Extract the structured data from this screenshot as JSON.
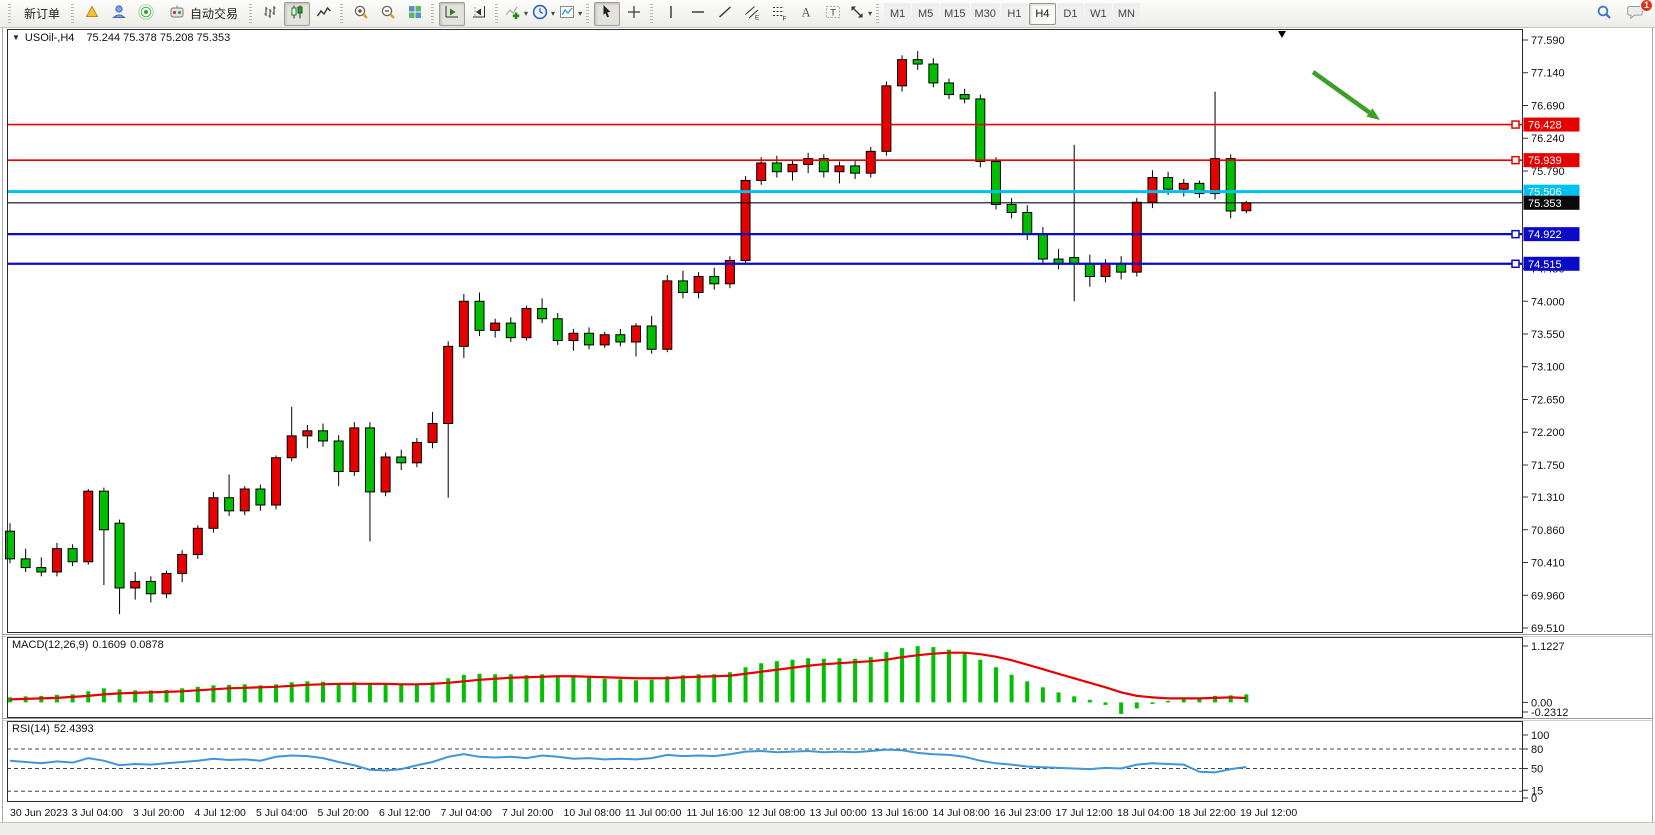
{
  "toolbar": {
    "new_order_label": "新订单",
    "auto_trading_label": "自动交易",
    "groups": [
      [
        {
          "type": "text",
          "name": "new-order-button",
          "label_key": "new_order_label"
        }
      ],
      [
        {
          "type": "icon",
          "name": "gold-badge-icon"
        },
        {
          "type": "icon",
          "name": "accounts-icon"
        },
        {
          "type": "icon",
          "name": "signal-icon"
        },
        {
          "type": "icon-text",
          "name": "autotrading-button",
          "icon": "autotrading-icon",
          "label_key": "auto_trading_label"
        }
      ],
      [
        {
          "type": "icon",
          "name": "bar-chart-icon"
        },
        {
          "type": "icon",
          "name": "candlestick-chart-icon",
          "pressed": true
        },
        {
          "type": "icon",
          "name": "line-chart-icon"
        }
      ],
      [
        {
          "type": "icon",
          "name": "zoom-in-icon"
        },
        {
          "type": "icon",
          "name": "zoom-out-icon"
        },
        {
          "type": "icon",
          "name": "tile-windows-icon"
        }
      ],
      [
        {
          "type": "icon",
          "name": "auto-scroll-icon",
          "pressed": true
        },
        {
          "type": "icon",
          "name": "chart-shift-icon"
        }
      ],
      [
        {
          "type": "icon",
          "name": "indicators-icon",
          "dropdown": true
        },
        {
          "type": "icon",
          "name": "periods-icon",
          "dropdown": true
        },
        {
          "type": "icon",
          "name": "templates-icon",
          "dropdown": true
        }
      ],
      [
        {
          "type": "icon",
          "name": "cursor-icon",
          "pressed": true
        },
        {
          "type": "icon",
          "name": "crosshair-icon"
        }
      ],
      [
        {
          "type": "icon",
          "name": "vertical-line-icon"
        },
        {
          "type": "icon",
          "name": "horizontal-line-icon"
        },
        {
          "type": "icon",
          "name": "trendline-icon"
        },
        {
          "type": "icon",
          "name": "channel-icon"
        },
        {
          "type": "icon",
          "name": "fibonacci-icon"
        },
        {
          "type": "icon",
          "name": "text-icon"
        },
        {
          "type": "icon",
          "name": "text-label-icon"
        },
        {
          "type": "icon",
          "name": "arrows-icon",
          "dropdown": true
        }
      ]
    ],
    "timeframes": [
      "M1",
      "M5",
      "M15",
      "M30",
      "H1",
      "H4",
      "D1",
      "W1",
      "MN"
    ],
    "active_timeframe": "H4",
    "right_icons": [
      "search-icon",
      "notifications-icon"
    ],
    "notification_count": "1"
  },
  "chart": {
    "title": {
      "marker": "▼",
      "symbol_period": "USOil-,H4",
      "ohlc": "75.244 75.378 75.208 75.353"
    }
  },
  "chart_data": {
    "type": "candlestick",
    "symbol": "USOil",
    "period": "H4",
    "last_ohlc": {
      "open": 75.244,
      "high": 75.378,
      "low": 75.208,
      "close": 75.353
    },
    "ylim": [
      69.51,
      77.59
    ],
    "y_ticks": [
      "77.590",
      "77.140",
      "76.690",
      "76.240",
      "75.790",
      "74.450",
      "74.000",
      "73.550",
      "73.100",
      "72.650",
      "72.200",
      "71.750",
      "71.310",
      "70.860",
      "70.410",
      "69.960",
      "69.510"
    ],
    "x_labels": [
      "30 Jun 2023",
      "3 Jul 04:00",
      "3 Jul 20:00",
      "4 Jul 12:00",
      "5 Jul 04:00",
      "5 Jul 20:00",
      "6 Jul 12:00",
      "7 Jul 04:00",
      "7 Jul 20:00",
      "10 Jul 08:00",
      "11 Jul 00:00",
      "11 Jul 16:00",
      "12 Jul 08:00",
      "13 Jul 00:00",
      "13 Jul 16:00",
      "14 Jul 08:00",
      "16 Jul 23:00",
      "17 Jul 12:00",
      "18 Jul 04:00",
      "18 Jul 22:00",
      "19 Jul 12:00"
    ],
    "price_lines": [
      {
        "value": 76.428,
        "label": "76.428",
        "color": "#e60000",
        "width": 1.6,
        "marker": true
      },
      {
        "value": 75.939,
        "label": "75.939",
        "color": "#e60000",
        "width": 1.6,
        "marker": true
      },
      {
        "value": 75.506,
        "label": "75.506",
        "color": "#00c0ef",
        "width": 3,
        "marker": false
      },
      {
        "value": 75.353,
        "label": "75.353",
        "color": "#0a0a0a",
        "width": 1.2,
        "marker": false,
        "role": "current-price"
      },
      {
        "value": 74.922,
        "label": "74.922",
        "color": "#0a0ac8",
        "width": 2.2,
        "marker": true
      },
      {
        "value": 74.515,
        "label": "74.515",
        "color": "#0a0ac8",
        "width": 2.2,
        "marker": true
      }
    ],
    "candles": [
      [
        70.84,
        70.95,
        70.4,
        70.46
      ],
      [
        70.46,
        70.6,
        70.28,
        70.34
      ],
      [
        70.34,
        70.48,
        70.22,
        70.28
      ],
      [
        70.28,
        70.68,
        70.22,
        70.6
      ],
      [
        70.6,
        70.66,
        70.36,
        70.42
      ],
      [
        70.42,
        71.42,
        70.38,
        71.39
      ],
      [
        71.39,
        71.44,
        70.1,
        70.86
      ],
      [
        70.95,
        71.0,
        69.7,
        70.06
      ],
      [
        70.06,
        70.28,
        69.9,
        70.15
      ],
      [
        70.15,
        70.22,
        69.86,
        69.98
      ],
      [
        69.98,
        70.3,
        69.92,
        70.26
      ],
      [
        70.26,
        70.58,
        70.14,
        70.52
      ],
      [
        70.52,
        70.92,
        70.46,
        70.88
      ],
      [
        70.88,
        71.38,
        70.82,
        71.3
      ],
      [
        71.3,
        71.62,
        71.05,
        71.12
      ],
      [
        71.12,
        71.46,
        71.06,
        71.42
      ],
      [
        71.42,
        71.48,
        71.12,
        71.2
      ],
      [
        71.2,
        71.88,
        71.14,
        71.85
      ],
      [
        71.85,
        72.55,
        71.8,
        72.15
      ],
      [
        72.15,
        72.3,
        71.98,
        72.22
      ],
      [
        72.22,
        72.32,
        72.0,
        72.08
      ],
      [
        72.08,
        72.16,
        71.46,
        71.66
      ],
      [
        71.66,
        72.34,
        71.6,
        72.26
      ],
      [
        72.26,
        72.34,
        70.7,
        71.38
      ],
      [
        71.38,
        71.92,
        71.32,
        71.86
      ],
      [
        71.86,
        71.96,
        71.68,
        71.78
      ],
      [
        71.78,
        72.12,
        71.72,
        72.06
      ],
      [
        72.06,
        72.48,
        71.98,
        72.32
      ],
      [
        72.32,
        73.45,
        71.3,
        73.38
      ],
      [
        73.38,
        74.1,
        73.22,
        74.0
      ],
      [
        74.0,
        74.12,
        73.52,
        73.6
      ],
      [
        73.6,
        73.76,
        73.5,
        73.7
      ],
      [
        73.7,
        73.78,
        73.44,
        73.5
      ],
      [
        73.5,
        73.94,
        73.46,
        73.9
      ],
      [
        73.9,
        74.04,
        73.7,
        73.76
      ],
      [
        73.76,
        73.84,
        73.4,
        73.46
      ],
      [
        73.46,
        73.62,
        73.32,
        73.56
      ],
      [
        73.56,
        73.64,
        73.34,
        73.4
      ],
      [
        73.4,
        73.58,
        73.36,
        73.54
      ],
      [
        73.54,
        73.62,
        73.38,
        73.44
      ],
      [
        73.44,
        73.7,
        73.24,
        73.66
      ],
      [
        73.66,
        73.8,
        73.28,
        73.34
      ],
      [
        73.34,
        74.36,
        73.3,
        74.28
      ],
      [
        74.28,
        74.42,
        74.04,
        74.12
      ],
      [
        74.12,
        74.4,
        74.04,
        74.34
      ],
      [
        74.34,
        74.46,
        74.16,
        74.24
      ],
      [
        74.24,
        74.62,
        74.18,
        74.56
      ],
      [
        74.56,
        75.72,
        74.5,
        75.66
      ],
      [
        75.66,
        75.98,
        75.6,
        75.9
      ],
      [
        75.9,
        76.0,
        75.7,
        75.78
      ],
      [
        75.78,
        75.94,
        75.66,
        75.88
      ],
      [
        75.88,
        76.04,
        75.76,
        75.96
      ],
      [
        75.96,
        76.02,
        75.7,
        75.78
      ],
      [
        75.78,
        75.92,
        75.62,
        75.86
      ],
      [
        75.86,
        75.94,
        75.68,
        75.76
      ],
      [
        75.76,
        76.12,
        75.7,
        76.06
      ],
      [
        76.06,
        77.02,
        76.0,
        76.96
      ],
      [
        76.96,
        77.38,
        76.88,
        77.32
      ],
      [
        77.32,
        77.44,
        77.18,
        77.26
      ],
      [
        77.26,
        77.34,
        76.94,
        77.0
      ],
      [
        77.0,
        77.06,
        76.78,
        76.84
      ],
      [
        76.84,
        76.92,
        76.72,
        76.78
      ],
      [
        76.78,
        76.84,
        75.84,
        75.92
      ],
      [
        75.92,
        75.98,
        75.26,
        75.33
      ],
      [
        75.33,
        75.42,
        75.14,
        75.22
      ],
      [
        75.22,
        75.32,
        74.84,
        74.92
      ],
      [
        74.92,
        75.02,
        74.5,
        74.58
      ],
      [
        74.58,
        74.72,
        74.44,
        74.52
      ],
      [
        74.6,
        76.15,
        74.0,
        74.52
      ],
      [
        74.52,
        74.64,
        74.2,
        74.34
      ],
      [
        74.34,
        74.58,
        74.26,
        74.52
      ],
      [
        74.52,
        74.62,
        74.3,
        74.4
      ],
      [
        74.4,
        75.42,
        74.34,
        75.36
      ],
      [
        75.36,
        75.8,
        75.28,
        75.7
      ],
      [
        75.7,
        75.78,
        75.46,
        75.54
      ],
      [
        75.54,
        75.68,
        75.44,
        75.62
      ],
      [
        75.62,
        75.66,
        75.42,
        75.48
      ],
      [
        75.48,
        76.88,
        75.4,
        75.96
      ],
      [
        75.96,
        76.02,
        75.14,
        75.24
      ],
      [
        75.244,
        75.378,
        75.208,
        75.353
      ]
    ],
    "macd": {
      "label": "MACD(12,26,9)",
      "value_main": "0.1609",
      "value_signal": "0.0878",
      "axis": [
        "1.1227",
        "0.00",
        "-0.2312"
      ],
      "ylim": [
        -0.2312,
        1.1227
      ],
      "histogram": [
        0.1,
        0.12,
        0.13,
        0.15,
        0.16,
        0.22,
        0.28,
        0.26,
        0.24,
        0.24,
        0.25,
        0.28,
        0.31,
        0.34,
        0.35,
        0.36,
        0.34,
        0.36,
        0.4,
        0.42,
        0.41,
        0.38,
        0.4,
        0.36,
        0.36,
        0.35,
        0.37,
        0.4,
        0.48,
        0.55,
        0.57,
        0.56,
        0.56,
        0.54,
        0.56,
        0.54,
        0.51,
        0.5,
        0.47,
        0.46,
        0.44,
        0.45,
        0.52,
        0.54,
        0.56,
        0.56,
        0.6,
        0.7,
        0.78,
        0.82,
        0.85,
        0.88,
        0.87,
        0.88,
        0.87,
        0.9,
        1.0,
        1.08,
        1.12,
        1.1,
        1.05,
        0.98,
        0.85,
        0.7,
        0.55,
        0.42,
        0.3,
        0.2,
        0.12,
        0.05,
        -0.05,
        -0.23,
        -0.12,
        -0.03,
        0.03,
        0.06,
        0.09,
        0.13,
        0.14,
        0.16
      ],
      "signal": [
        0.06,
        0.07,
        0.08,
        0.09,
        0.11,
        0.13,
        0.16,
        0.18,
        0.19,
        0.2,
        0.21,
        0.22,
        0.24,
        0.26,
        0.28,
        0.29,
        0.3,
        0.31,
        0.33,
        0.35,
        0.36,
        0.37,
        0.37,
        0.37,
        0.37,
        0.36,
        0.36,
        0.37,
        0.39,
        0.42,
        0.45,
        0.47,
        0.49,
        0.5,
        0.51,
        0.52,
        0.52,
        0.51,
        0.5,
        0.49,
        0.48,
        0.48,
        0.48,
        0.5,
        0.51,
        0.52,
        0.53,
        0.57,
        0.61,
        0.65,
        0.69,
        0.73,
        0.76,
        0.78,
        0.8,
        0.82,
        0.85,
        0.9,
        0.94,
        0.97,
        0.99,
        0.99,
        0.96,
        0.91,
        0.84,
        0.75,
        0.66,
        0.57,
        0.48,
        0.39,
        0.3,
        0.2,
        0.13,
        0.1,
        0.08,
        0.08,
        0.08,
        0.09,
        0.1,
        0.088
      ]
    },
    "rsi": {
      "label": "RSI(14)",
      "value": "52.4393",
      "axis": [
        "100",
        "80",
        "50",
        "15",
        "0"
      ],
      "levels": [
        80,
        50,
        15
      ],
      "ylim": [
        0,
        100
      ],
      "series": [
        62,
        60,
        58,
        61,
        59,
        66,
        62,
        55,
        57,
        56,
        58,
        60,
        62,
        65,
        63,
        64,
        62,
        68,
        70,
        69,
        66,
        60,
        55,
        48,
        47,
        49,
        55,
        60,
        68,
        72,
        68,
        67,
        68,
        66,
        70,
        68,
        65,
        66,
        64,
        65,
        64,
        66,
        71,
        69,
        70,
        69,
        72,
        76,
        77,
        75,
        76,
        77,
        75,
        76,
        75,
        77,
        79,
        78,
        74,
        72,
        71,
        68,
        62,
        58,
        56,
        53,
        52,
        51,
        50,
        49,
        51,
        50,
        56,
        58,
        57,
        56,
        45,
        44,
        49,
        52.4
      ]
    },
    "annotations": {
      "arrow": {
        "color": "#3f9e27",
        "from": [
          1313,
          44
        ],
        "to": [
          1380,
          92
        ],
        "width": 4.5
      },
      "shift_marker_x": 1282
    }
  },
  "colors": {
    "bull": "#e60000",
    "bear": "#00be00",
    "wick": "#000000",
    "macd_hist": "#00c000",
    "macd_signal": "#e60000",
    "rsi_line": "#3f96d8",
    "axis_text": "#111111",
    "pane_border": "#2b2b2b"
  }
}
